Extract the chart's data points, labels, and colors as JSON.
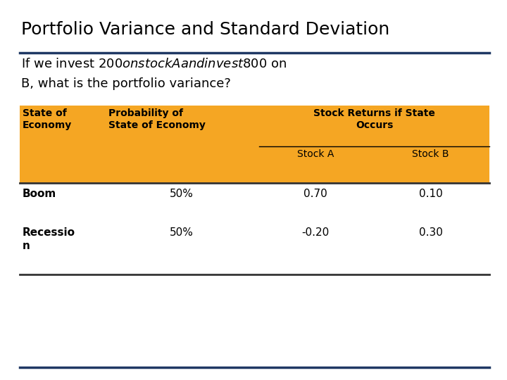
{
  "title": "Portfolio Variance and Standard Deviation",
  "subtitle_line1": "If we invest $200 on stock A and invest $800 on",
  "subtitle_line2": "B, what is the portfolio variance?",
  "background_color": "#ffffff",
  "title_color": "#000000",
  "subtitle_color": "#000000",
  "title_fontsize": 18,
  "subtitle_fontsize": 13,
  "header_bg_color": "#F5A623",
  "header_text_color": "#000000",
  "body_text_color": "#000000",
  "accent_line_color": "#1F3864",
  "table_data": [
    [
      "Boom",
      "50%",
      "0.70",
      "0.10"
    ],
    [
      "Recessio\nn",
      "50%",
      "-0.20",
      "0.30"
    ]
  ]
}
